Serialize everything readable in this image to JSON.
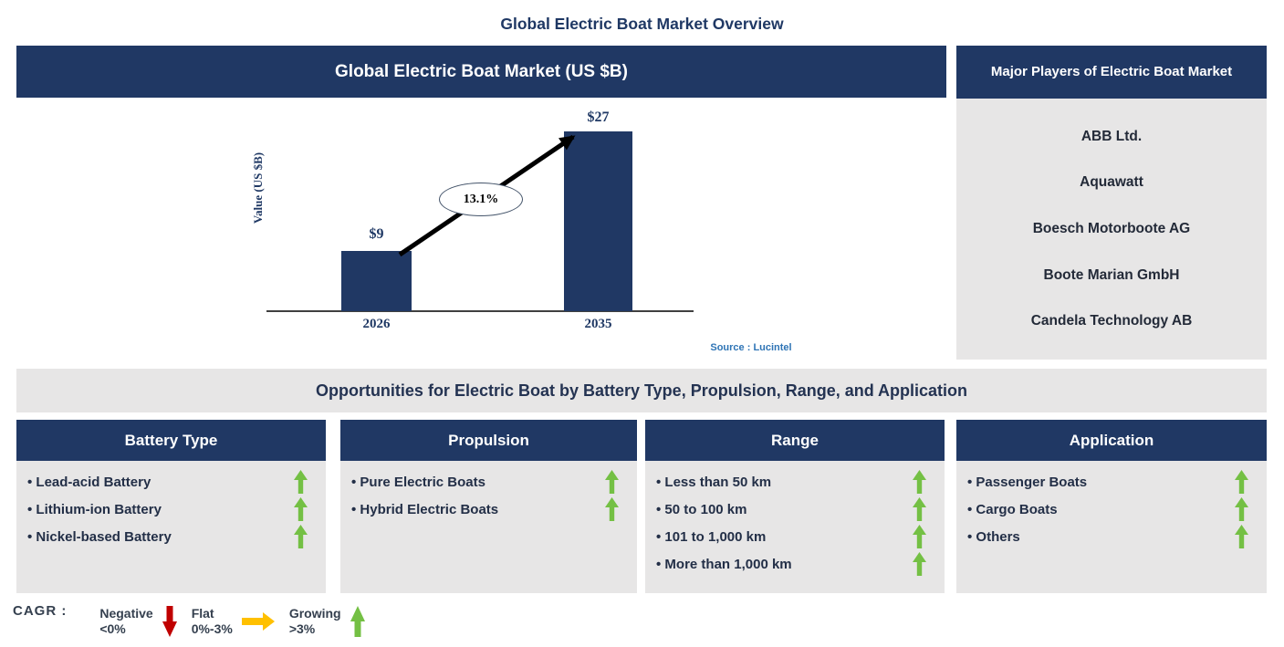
{
  "page_title": "Global Electric Boat Market Overview",
  "chart_panel": {
    "header": "Global Electric Boat Market (US $B)",
    "source": "Source : Lucintel"
  },
  "chart_data": {
    "type": "bar",
    "title": "Global Electric Boat Market (US $B)",
    "categories": [
      "2026",
      "2035"
    ],
    "values": [
      9,
      27
    ],
    "value_labels": [
      "$9",
      "$27"
    ],
    "ylabel": "Value (US $B)",
    "ylim": [
      0,
      30
    ],
    "annotation": {
      "label": "13.1%",
      "meaning": "CAGR 2026-2035",
      "shape": "ellipse-with-arrow"
    },
    "bar_color": "#203864",
    "grid": false,
    "legend_position": "none"
  },
  "players_panel": {
    "header": "Major Players of Electric Boat Market",
    "players": [
      "ABB Ltd.",
      "Aquawatt",
      "Boesch Motorboote AG",
      "Boote Marian GmbH",
      "Candela Technology AB"
    ]
  },
  "opportunities": {
    "banner": "Opportunities for Electric Boat by Battery Type, Propulsion, Range, and Application",
    "columns": [
      {
        "header": "Battery Type",
        "items": [
          "Lead-acid Battery",
          "Lithium-ion Battery",
          "Nickel-based Battery"
        ],
        "trends": [
          "growing",
          "growing",
          "growing"
        ]
      },
      {
        "header": "Propulsion",
        "items": [
          "Pure Electric Boats",
          "Hybrid Electric Boats"
        ],
        "trends": [
          "growing",
          "growing"
        ]
      },
      {
        "header": "Range",
        "items": [
          "Less than 50 km",
          "50 to 100 km",
          "101 to 1,000 km",
          "More than 1,000 km"
        ],
        "trends": [
          "growing",
          "growing",
          "growing",
          "growing"
        ]
      },
      {
        "header": "Application",
        "items": [
          "Passenger Boats",
          "Cargo Boats",
          "Others"
        ],
        "trends": [
          "growing",
          "growing",
          "growing"
        ]
      }
    ]
  },
  "legend": {
    "label": "CAGR :",
    "entries": [
      {
        "name": "Negative",
        "range": "<0%",
        "icon": "down-arrow-icon",
        "color": "#C00000"
      },
      {
        "name": "Flat",
        "range": "0%-3%",
        "icon": "right-arrow-icon",
        "color": "#FFC000"
      },
      {
        "name": "Growing",
        "range": ">3%",
        "icon": "up-arrow-icon",
        "color": "#74C044"
      }
    ]
  },
  "colors": {
    "navy": "#203864",
    "panel_gray": "#E7E6E6",
    "title_navy": "#1F3864",
    "source_blue": "#2E74B5",
    "growth_green": "#74C044",
    "negative_red": "#C00000",
    "flat_yellow": "#FFC000"
  }
}
